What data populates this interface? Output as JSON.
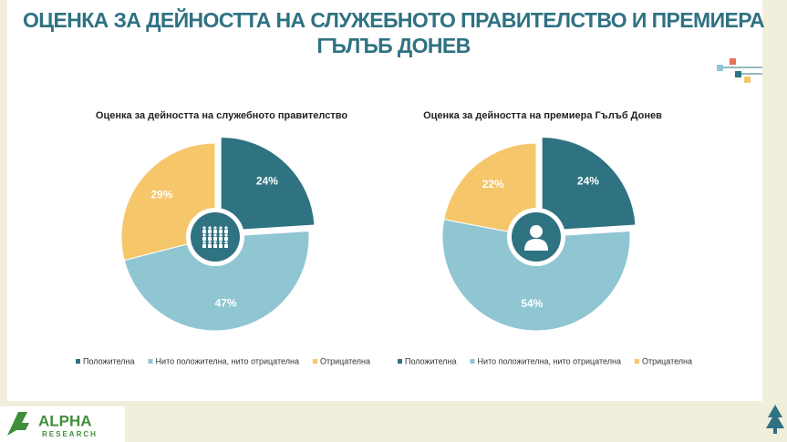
{
  "title": "ОЦЕНКА ЗА ДЕЙНОСТТА НА СЛУЖЕБНОТО ПРАВИТЕЛСТВО И ПРЕМИЕРА ГЪЛЪБ ДОНЕВ",
  "logo": {
    "name": "ALPHA",
    "subtitle": "RESEARCH"
  },
  "chart_data": [
    {
      "type": "pie",
      "title": "Оценка за дейността на служебното правителство",
      "categories": [
        "Положителна",
        "Нито положителна, нито отрицателна",
        "Отрицателна"
      ],
      "values": [
        24,
        47,
        29
      ],
      "value_labels": [
        "24%",
        "47%",
        "29%"
      ],
      "colors": [
        "#2f7282",
        "#8fc6d2",
        "#f6c66b"
      ]
    },
    {
      "type": "pie",
      "title": "Оценка за дейността на премиера Гълъб Донев",
      "categories": [
        "Положителна",
        "Нито положителна, нито отрицателна",
        "Отрицателна"
      ],
      "values": [
        24,
        54,
        22
      ],
      "value_labels": [
        "24%",
        "54%",
        "22%"
      ],
      "colors": [
        "#2f7282",
        "#8fc6d2",
        "#f6c66b"
      ]
    }
  ]
}
